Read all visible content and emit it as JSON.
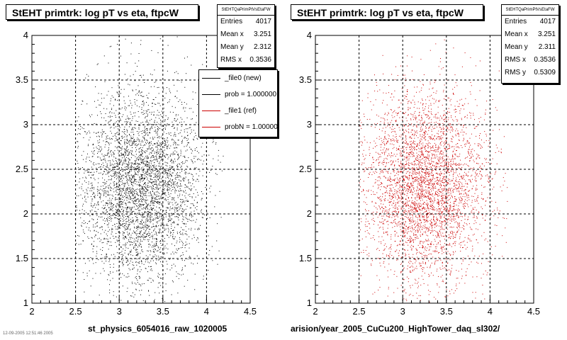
{
  "chart_data": [
    {
      "type": "scatter",
      "title": "StEHT primtrk: log pT vs eta, ftpcW",
      "xlabel": "st_physics_6054016_raw_1020005",
      "ylabel": "",
      "xlim": [
        2,
        4.5
      ],
      "ylim": [
        1,
        4
      ],
      "x_ticks": [
        "2",
        "2.5",
        "3",
        "3.5",
        "4",
        "4.5"
      ],
      "y_ticks": [
        "1",
        "1.5",
        "2",
        "2.5",
        "3",
        "3.5",
        "4"
      ],
      "grid": true,
      "marker_color": "#000000",
      "distribution": {
        "entries": 4017,
        "mean_x": 3.251,
        "mean_y": 2.312,
        "rms_x": 0.3536
      },
      "stats": {
        "name": "StEHTQaPrimPtVsEtaFW",
        "rows": [
          {
            "label": "Entries",
            "value": "4017"
          },
          {
            "label": "Mean x",
            "value": "3.251"
          },
          {
            "label": "Mean y",
            "value": "2.312"
          },
          {
            "label": "RMS x",
            "value": "0.3536"
          }
        ]
      },
      "legend": {
        "placement": "top-right",
        "entries": [
          {
            "label": "_file0 (new)",
            "color": "#000000"
          },
          {
            "label": "prob = 1.000000",
            "color": "#000000"
          },
          {
            "label": "_file1 (ref)",
            "color": "#cc0000"
          },
          {
            "label": "probN = 1.000000",
            "color": "#cc0000"
          }
        ]
      },
      "footnote": "12-09-2005 12:51:46 2005"
    },
    {
      "type": "scatter",
      "title": "StEHT primtrk: log pT vs eta, ftpcW",
      "xlabel": "arision/year_2005_CuCu200_HighTower_daq_sl302/",
      "ylabel": "",
      "xlim": [
        2,
        4.5
      ],
      "ylim": [
        1,
        4
      ],
      "x_ticks": [
        "2",
        "2.5",
        "3",
        "3.5",
        "4",
        "4.5"
      ],
      "y_ticks": [
        "1",
        "1.5",
        "2",
        "2.5",
        "3",
        "3.5",
        "4"
      ],
      "grid": true,
      "marker_color": "#cc0000",
      "distribution": {
        "entries": 4017,
        "mean_x": 3.251,
        "mean_y": 2.311,
        "rms_x": 0.3536,
        "rms_y": 0.5309
      },
      "stats": {
        "name": "StEHTQaPrimPtVsEtaFW",
        "rows": [
          {
            "label": "Entries",
            "value": "4017"
          },
          {
            "label": "Mean x",
            "value": "3.251"
          },
          {
            "label": "Mean y",
            "value": "2.311"
          },
          {
            "label": "RMS x",
            "value": "0.3536"
          },
          {
            "label": "RMS y",
            "value": "0.5309"
          }
        ]
      }
    }
  ]
}
